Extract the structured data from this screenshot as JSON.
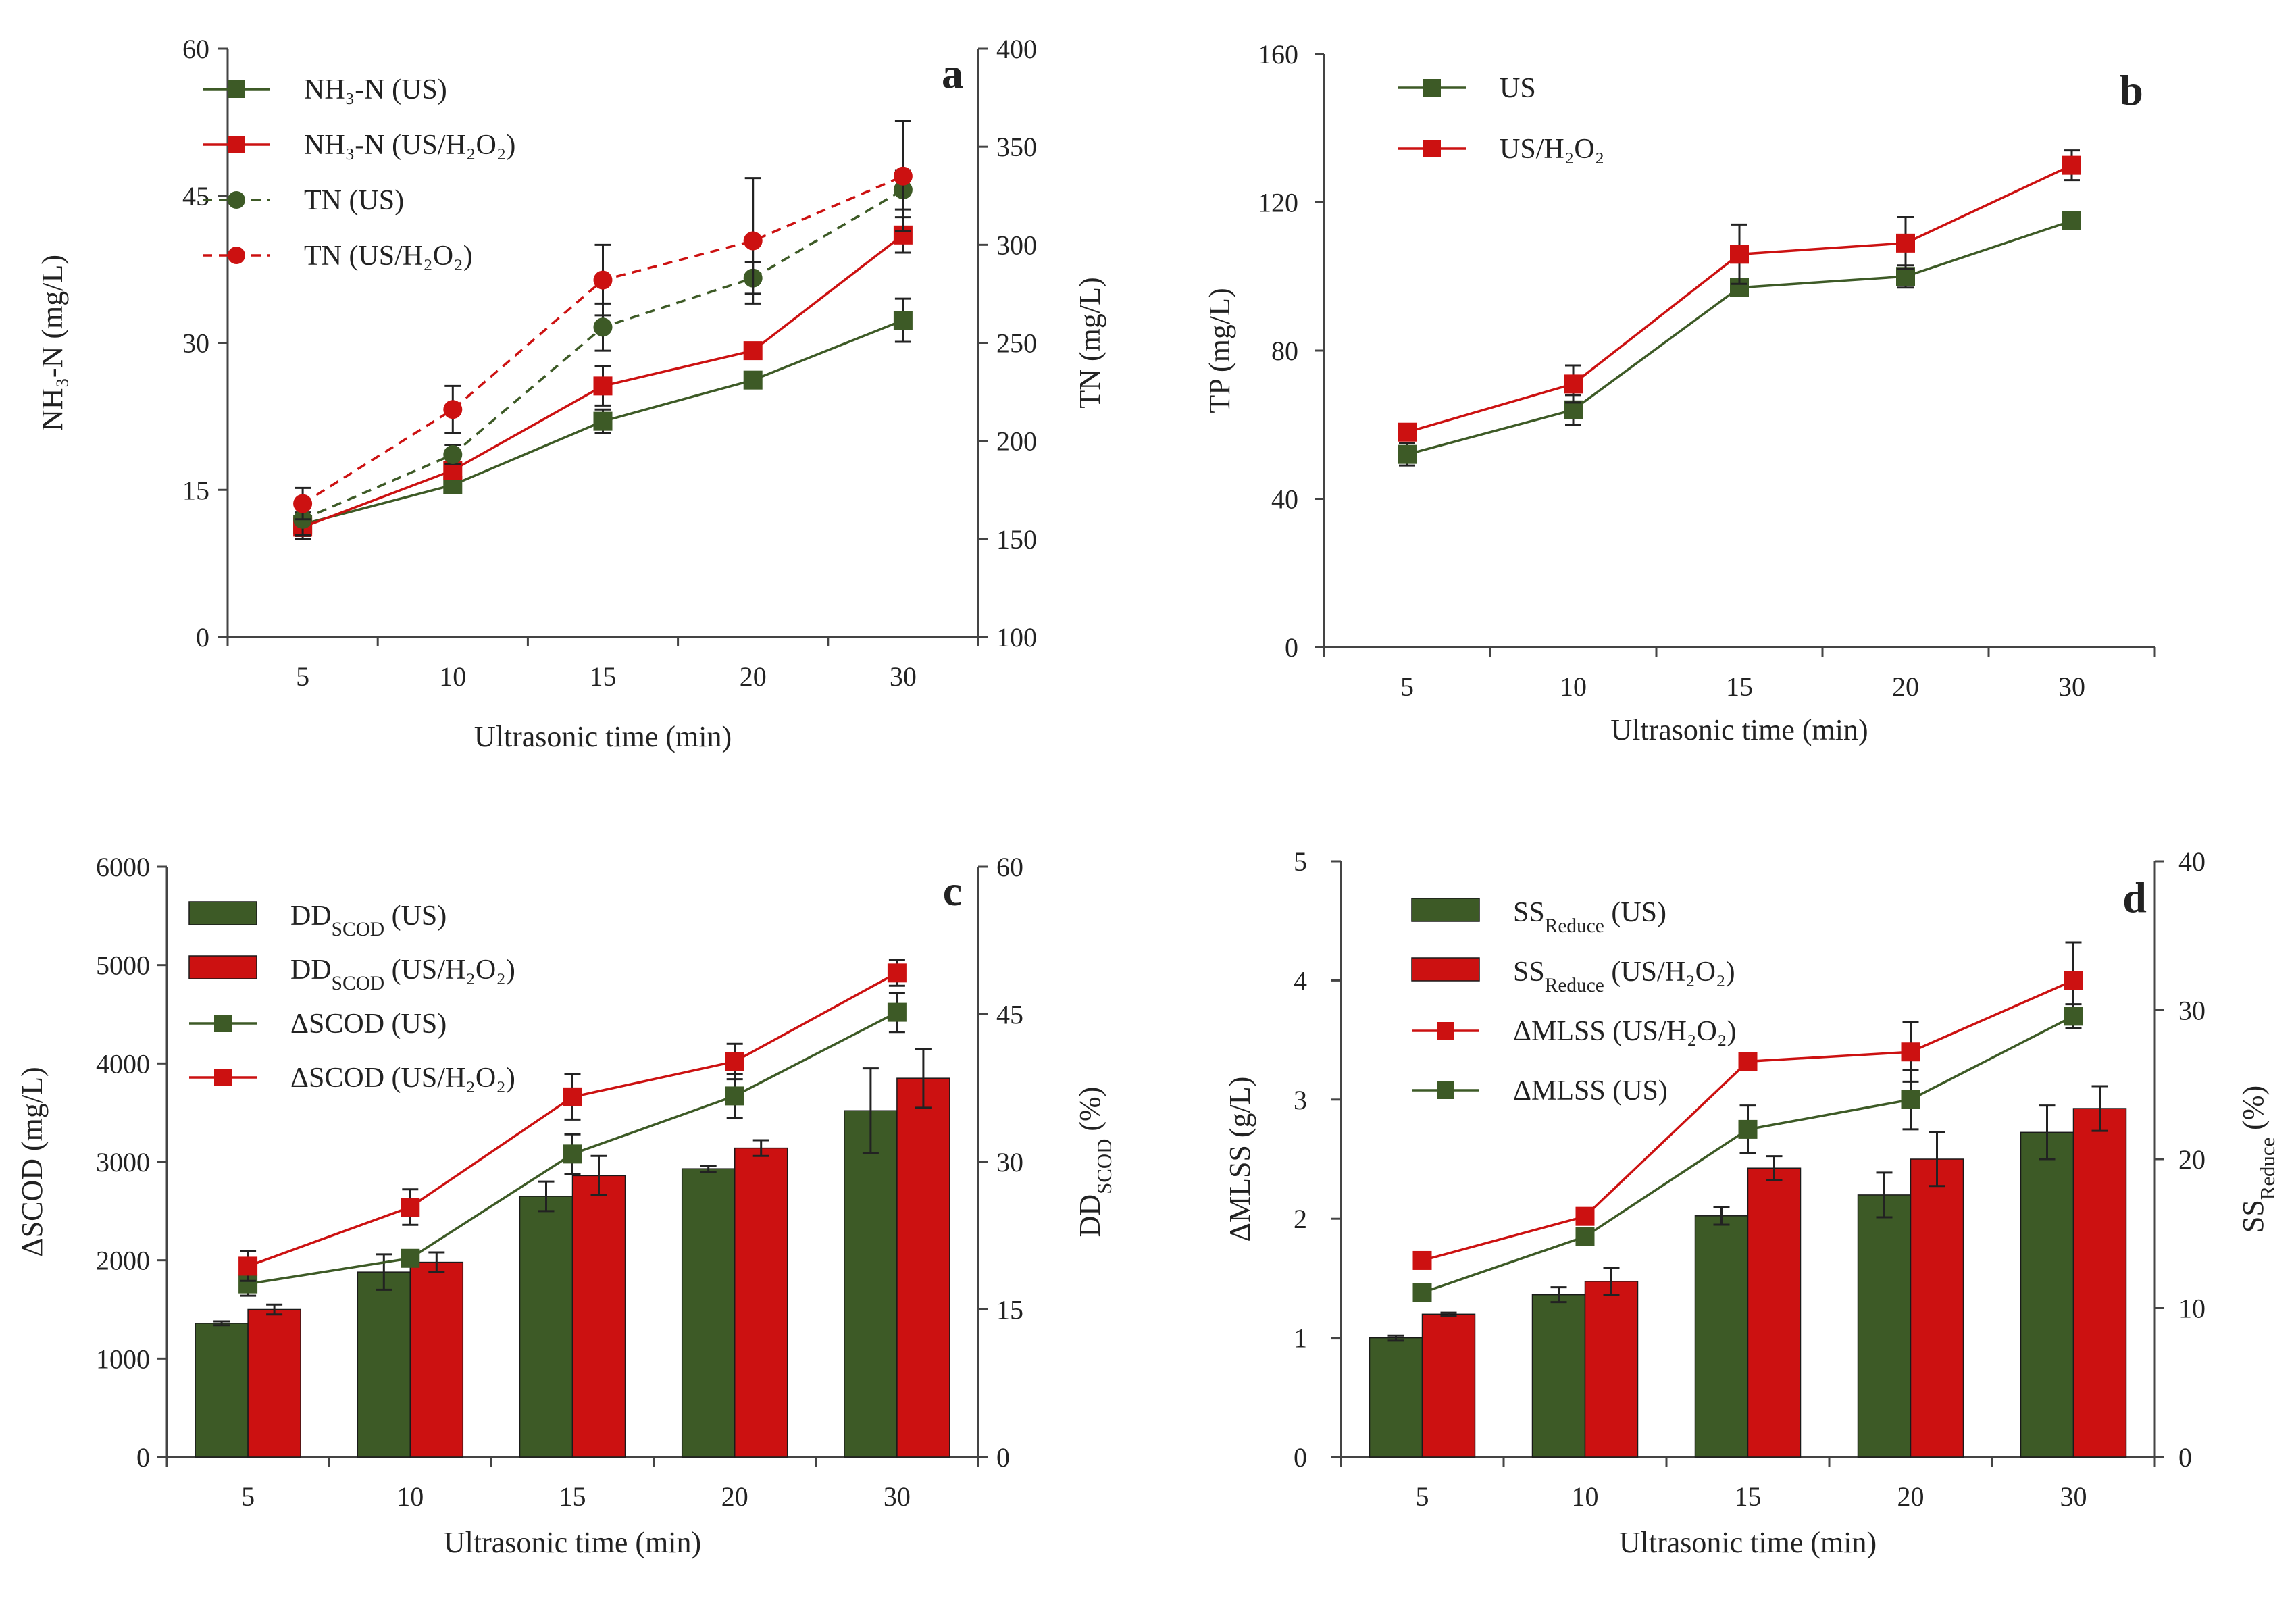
{
  "colors": {
    "us": "#3d5a26",
    "h2o2": "#cc1111",
    "axis": "#444444"
  },
  "chart_data": [
    {
      "id": "a",
      "type": "line",
      "panel_label": "a",
      "categories": [
        "5",
        "10",
        "15",
        "20",
        "30"
      ],
      "xlabel": "Ultrasonic time (min)",
      "ylabel": "NH₃-N (mg/L)",
      "ylim": [
        0,
        60
      ],
      "yticks": [
        "0",
        "15",
        "30",
        "45",
        "60"
      ],
      "y2label": "TN (mg/L)",
      "y2lim": [
        100,
        400
      ],
      "y2ticks": [
        "100",
        "150",
        "200",
        "250",
        "300",
        "350",
        "400"
      ],
      "series": [
        {
          "name": "NH₃-N  (US)",
          "axis": "y",
          "style": "solid",
          "marker": "square",
          "color": "us",
          "values": [
            11.5,
            15.5,
            22,
            26.2,
            32.3
          ],
          "errors": [
            1.2,
            0.6,
            1.2,
            0.6,
            2.2
          ]
        },
        {
          "name": "NH₃-N  (US/H₂O₂)",
          "axis": "y",
          "style": "solid",
          "marker": "square",
          "color": "h2o2",
          "values": [
            11.2,
            17,
            25.6,
            29.2,
            41
          ],
          "errors": [
            1.2,
            0.8,
            2,
            0.6,
            1.8
          ]
        },
        {
          "name": "TN (US)",
          "axis": "y2",
          "style": "dashed",
          "marker": "circle",
          "color": "us",
          "values": [
            160,
            193,
            258,
            283,
            328
          ],
          "errors": [
            8,
            5,
            12,
            8,
            10
          ]
        },
        {
          "name": "TN (US/H₂O₂)",
          "axis": "y2",
          "style": "dashed",
          "marker": "circle",
          "color": "h2o2",
          "values": [
            168,
            216,
            282,
            302,
            335
          ],
          "errors": [
            8,
            12,
            18,
            32,
            28
          ]
        }
      ]
    },
    {
      "id": "b",
      "type": "line",
      "panel_label": "b",
      "categories": [
        "5",
        "10",
        "15",
        "20",
        "30"
      ],
      "xlabel": "Ultrasonic time (min)",
      "ylabel": "TP (mg/L)",
      "ylim": [
        0,
        160
      ],
      "yticks": [
        "0",
        "40",
        "80",
        "120",
        "160"
      ],
      "series": [
        {
          "name": "US",
          "axis": "y",
          "style": "solid",
          "marker": "square",
          "color": "us",
          "values": [
            52,
            64,
            97,
            100,
            115
          ],
          "errors": [
            3,
            4,
            2,
            3,
            1
          ]
        },
        {
          "name": "US/H₂O₂",
          "axis": "y",
          "style": "solid",
          "marker": "square",
          "color": "h2o2",
          "values": [
            58,
            71,
            106,
            109,
            130
          ],
          "errors": [
            2,
            5,
            8,
            7,
            4
          ]
        }
      ]
    },
    {
      "id": "c",
      "type": "bar+line",
      "panel_label": "c",
      "categories": [
        "5",
        "10",
        "15",
        "20",
        "30"
      ],
      "xlabel": "Ultrasonic time (min)",
      "ylabel": "ΔSCOD (mg/L)",
      "ylim": [
        0,
        6000
      ],
      "yticks": [
        "0",
        "1000",
        "2000",
        "3000",
        "4000",
        "5000",
        "6000"
      ],
      "y2label": "DDSCOD (%)",
      "y2lim": [
        0,
        60
      ],
      "y2ticks": [
        "0",
        "15",
        "30",
        "45",
        "60"
      ],
      "bars": [
        {
          "name": "DDSCOD (US)",
          "axis": "y2",
          "color": "us",
          "values": [
            13.6,
            18.8,
            26.5,
            29.3,
            35.2
          ],
          "errors": [
            0.2,
            1.8,
            1.5,
            0.3,
            4.3
          ]
        },
        {
          "name": "DDSCOD (US/H₂O₂)",
          "axis": "y2",
          "color": "h2o2",
          "values": [
            15,
            19.8,
            28.6,
            31.4,
            38.5
          ],
          "errors": [
            0.5,
            1,
            2,
            0.8,
            3
          ]
        }
      ],
      "series": [
        {
          "name": "ΔSCOD  (US)",
          "axis": "y",
          "style": "solid",
          "marker": "square",
          "color": "us",
          "values": [
            1760,
            2020,
            3080,
            3670,
            4520
          ],
          "errors": [
            120,
            60,
            200,
            220,
            200
          ]
        },
        {
          "name": "ΔSCOD  (US/H₂O₂)",
          "axis": "y",
          "style": "solid",
          "marker": "square",
          "color": "h2o2",
          "values": [
            1940,
            2540,
            3660,
            4020,
            4920
          ],
          "errors": [
            150,
            180,
            230,
            180,
            130
          ]
        }
      ]
    },
    {
      "id": "d",
      "type": "bar+line",
      "panel_label": "d",
      "categories": [
        "5",
        "10",
        "15",
        "20",
        "30"
      ],
      "xlabel": "Ultrasonic time (min)",
      "ylabel": "ΔMLSS (g/L)",
      "ylim": [
        0,
        5
      ],
      "yticks": [
        "0",
        "1",
        "2",
        "3",
        "4",
        "5"
      ],
      "y2label": "SSReduce (%)",
      "y2lim": [
        0,
        40
      ],
      "y2ticks": [
        "0",
        "10",
        "20",
        "30",
        "40"
      ],
      "bars": [
        {
          "name": "SSReduce (US)",
          "axis": "y2",
          "color": "us",
          "values": [
            8,
            10.9,
            16.2,
            17.6,
            21.8
          ],
          "errors": [
            0.15,
            0.5,
            0.6,
            1.5,
            1.8
          ]
        },
        {
          "name": "SSReduce (US/H₂O₂)",
          "axis": "y2",
          "color": "h2o2",
          "values": [
            9.6,
            11.8,
            19.4,
            20,
            23.4
          ],
          "errors": [
            0.1,
            0.9,
            0.8,
            1.8,
            1.5
          ]
        }
      ],
      "series": [
        {
          "name": "ΔMLSS  (US/H₂O₂)",
          "axis": "y",
          "style": "solid",
          "marker": "square",
          "color": "h2o2",
          "values": [
            1.65,
            2.02,
            3.32,
            3.4,
            4
          ],
          "errors": [
            0.03,
            0.05,
            0.04,
            0.25,
            0.32
          ]
        },
        {
          "name": "ΔMLSS  (US)",
          "axis": "y",
          "style": "solid",
          "marker": "square",
          "color": "us",
          "values": [
            1.38,
            1.85,
            2.75,
            3,
            3.7
          ],
          "errors": [
            0.03,
            0.05,
            0.2,
            0.25,
            0.1
          ]
        }
      ]
    }
  ]
}
